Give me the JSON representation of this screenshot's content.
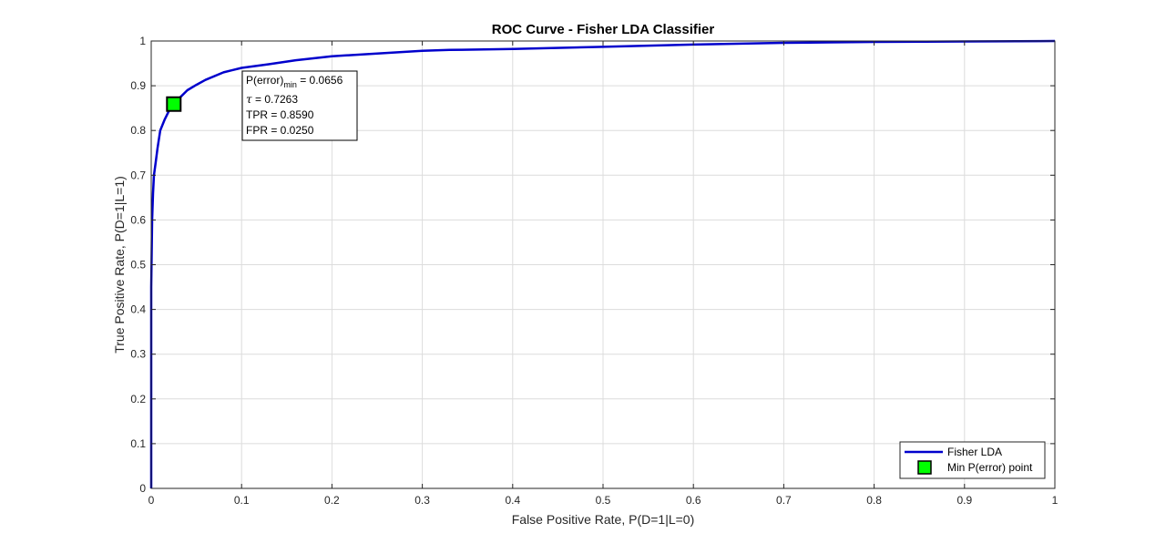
{
  "chart_data": {
    "type": "line",
    "title": "ROC Curve - Fisher LDA Classifier",
    "xlabel": "False Positive Rate, P(D=1|L=0)",
    "ylabel": "True Positive Rate, P(D=1|L=1)",
    "xlim": [
      0,
      1
    ],
    "ylim": [
      0,
      1
    ],
    "grid": true,
    "x_ticks": [
      0,
      0.1,
      0.2,
      0.3,
      0.4,
      0.5,
      0.6,
      0.7,
      0.8,
      0.9,
      1
    ],
    "x_tick_labels": [
      "0",
      "0.1",
      "0.2",
      "0.3",
      "0.4",
      "0.5",
      "0.6",
      "0.7",
      "0.8",
      "0.9",
      "1"
    ],
    "y_ticks": [
      0,
      0.1,
      0.2,
      0.3,
      0.4,
      0.5,
      0.6,
      0.7,
      0.8,
      0.9,
      1
    ],
    "y_tick_labels": [
      "0",
      "0.1",
      "0.2",
      "0.3",
      "0.4",
      "0.5",
      "0.6",
      "0.7",
      "0.8",
      "0.9",
      "1"
    ],
    "series": [
      {
        "name": "Fisher LDA",
        "color": "#0000cc",
        "x": [
          0,
          0,
          0.001,
          0.002,
          0.003,
          0.005,
          0.007,
          0.01,
          0.015,
          0.02,
          0.025,
          0.03,
          0.04,
          0.05,
          0.06,
          0.08,
          0.1,
          0.13,
          0.16,
          0.2,
          0.25,
          0.3,
          0.33,
          0.4,
          0.5,
          0.6,
          0.7,
          0.75,
          0.8,
          0.9,
          1.0
        ],
        "y": [
          0,
          0.45,
          0.6,
          0.66,
          0.7,
          0.73,
          0.76,
          0.8,
          0.825,
          0.845,
          0.859,
          0.87,
          0.89,
          0.902,
          0.913,
          0.93,
          0.94,
          0.948,
          0.957,
          0.966,
          0.972,
          0.978,
          0.98,
          0.982,
          0.987,
          0.992,
          0.996,
          0.997,
          0.998,
          0.999,
          1.0
        ]
      }
    ],
    "marker": {
      "name": "Min P(error) point",
      "x": 0.025,
      "y": 0.859,
      "color": "#00ff00"
    },
    "annotation": {
      "perror_prefix": "P(error)",
      "perror_subscript": "min",
      "perror_value": " = 0.0656",
      "tau_symbol": "τ",
      "tau_value": " = 0.7263",
      "tpr": "TPR = 0.8590",
      "fpr": "FPR = 0.0250"
    },
    "legend": {
      "position": "bottom-right",
      "entries": [
        "Fisher LDA",
        "Min P(error) point"
      ]
    }
  }
}
